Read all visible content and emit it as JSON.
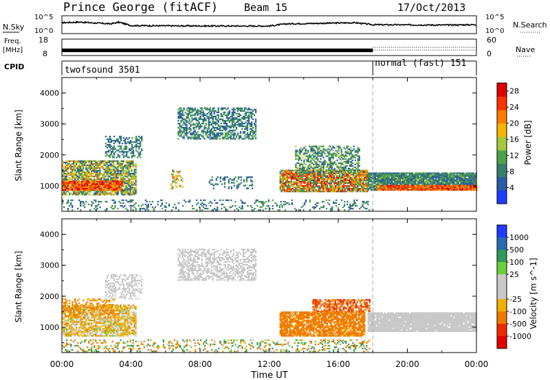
{
  "header": {
    "station": "Prince George (fitACF)",
    "beam": "Beam 15",
    "date": "17/Oct/2013"
  },
  "noise_panel": {
    "left_label": "N.Sky",
    "left_ticks": [
      "10^5",
      "10^0"
    ],
    "right_label": "N.Search",
    "right_ticks": [
      "10^5",
      "10^0"
    ]
  },
  "freq_panel": {
    "left_label_1": "Freq.",
    "left_label_2": "[MHz]",
    "left_ticks": [
      "18",
      "8"
    ],
    "right_label": "Nave",
    "right_ticks": [
      "60",
      "0"
    ]
  },
  "cpid": {
    "label": "CPID",
    "modes": [
      "twofsound 3501",
      "normal (fast) 151"
    ],
    "switch_time_hr": 18.0
  },
  "colors": {
    "power_scale": [
      "#1e3cff",
      "#2a5aa8",
      "#3a7e6a",
      "#4aa24a",
      "#a6c83a",
      "#f5b400",
      "#ff7b00",
      "#ff3000",
      "#e00000"
    ],
    "velocity_scale": [
      "#1e3cff",
      "#2a6ab4",
      "#2f9a5a",
      "#6ccf3a",
      "#c8c8c8",
      "#c8c8c8",
      "#f0b000",
      "#f07a00",
      "#ee2a00",
      "#e00000"
    ]
  },
  "chart_data": [
    {
      "type": "heatmap",
      "panel": "power",
      "ylabel": "Slant Range [km]",
      "yticks": [
        1000,
        2000,
        3000,
        4000
      ],
      "ylim": [
        180,
        4500
      ],
      "colorbar_label": "Power [dB]",
      "colorbar_ticks": [
        4,
        8,
        12,
        16,
        20,
        24,
        28
      ],
      "clim": [
        0,
        30
      ],
      "regions": [
        {
          "t0": 0.0,
          "t1": 4.3,
          "r0": 700,
          "r1": 1800,
          "dens": 0.75,
          "v0": 4,
          "v1": 22
        },
        {
          "t0": 0.0,
          "t1": 3.5,
          "r0": 850,
          "r1": 1150,
          "dens": 0.9,
          "v0": 18,
          "v1": 29
        },
        {
          "t0": 2.5,
          "t1": 4.6,
          "r0": 1900,
          "r1": 2600,
          "dens": 0.45,
          "v0": 4,
          "v1": 12
        },
        {
          "t0": 6.7,
          "t1": 11.2,
          "r0": 2500,
          "r1": 3500,
          "dens": 0.55,
          "v0": 4,
          "v1": 13
        },
        {
          "t0": 12.6,
          "t1": 17.7,
          "r0": 800,
          "r1": 1500,
          "dens": 0.85,
          "v0": 6,
          "v1": 29
        },
        {
          "t0": 13.5,
          "t1": 17.2,
          "r0": 1400,
          "r1": 2300,
          "dens": 0.5,
          "v0": 4,
          "v1": 16
        },
        {
          "t0": 17.7,
          "t1": 24.0,
          "r0": 850,
          "r1": 1400,
          "dens": 0.95,
          "v0": 4,
          "v1": 14
        },
        {
          "t0": 18.2,
          "t1": 24.0,
          "r0": 850,
          "r1": 1000,
          "dens": 0.9,
          "v0": 18,
          "v1": 29
        },
        {
          "t0": 0.0,
          "t1": 17.8,
          "r0": 200,
          "r1": 550,
          "dens": 0.2,
          "v0": 4,
          "v1": 12
        },
        {
          "t0": 6.3,
          "t1": 7.0,
          "r0": 900,
          "r1": 1500,
          "dens": 0.25,
          "v0": 8,
          "v1": 24
        },
        {
          "t0": 8.5,
          "t1": 11.0,
          "r0": 900,
          "r1": 1300,
          "dens": 0.25,
          "v0": 4,
          "v1": 12
        }
      ]
    },
    {
      "type": "heatmap",
      "panel": "velocity",
      "ylabel": "Slant Range [km]",
      "yticks": [
        1000,
        2000,
        3000,
        4000
      ],
      "ylim": [
        180,
        4500
      ],
      "colorbar_label": "Velocity [m s^-1]",
      "colorbar_ticks": [
        "1000",
        "500",
        "100",
        "25",
        "-25",
        "-100",
        "-500",
        "-1000"
      ],
      "regions": [
        {
          "t0": 0.0,
          "t1": 4.3,
          "r0": 700,
          "r1": 1700,
          "dens": 0.75,
          "v0": -120,
          "v1": 40
        },
        {
          "t0": 0.0,
          "t1": 3.0,
          "r0": 1300,
          "r1": 1900,
          "dens": 0.35,
          "v0": -200,
          "v1": -60
        },
        {
          "t0": 2.5,
          "t1": 4.6,
          "r0": 1900,
          "r1": 2700,
          "dens": 0.4,
          "v0": -20,
          "v1": 20
        },
        {
          "t0": 6.7,
          "t1": 11.2,
          "r0": 2500,
          "r1": 3500,
          "dens": 0.5,
          "v0": -20,
          "v1": 20
        },
        {
          "t0": 12.6,
          "t1": 17.5,
          "r0": 700,
          "r1": 1500,
          "dens": 0.8,
          "v0": -300,
          "v1": -70
        },
        {
          "t0": 14.5,
          "t1": 17.8,
          "r0": 1500,
          "r1": 1900,
          "dens": 0.6,
          "v0": -700,
          "v1": -200
        },
        {
          "t0": 17.7,
          "t1": 24.0,
          "r0": 850,
          "r1": 1450,
          "dens": 0.95,
          "v0": -20,
          "v1": 20
        },
        {
          "t0": 0.0,
          "t1": 17.8,
          "r0": 200,
          "r1": 600,
          "dens": 0.25,
          "v0": -300,
          "v1": 300
        }
      ]
    },
    {
      "type": "line",
      "panel": "noise",
      "x_range": [
        0,
        24
      ],
      "levels": [
        [
          0,
          0.62
        ],
        [
          1,
          0.66
        ],
        [
          2.8,
          0.55
        ],
        [
          3.3,
          0.65
        ],
        [
          4,
          0.45
        ],
        [
          6,
          0.43
        ],
        [
          10,
          0.42
        ],
        [
          12,
          0.42
        ],
        [
          13,
          0.55
        ],
        [
          17,
          0.62
        ],
        [
          18,
          0.5
        ],
        [
          22,
          0.48
        ],
        [
          24,
          0.5
        ]
      ]
    },
    {
      "type": "line",
      "panel": "frequency",
      "x_range": [
        0,
        24
      ],
      "freq_band_mhz": [
        9.8,
        12.2
      ],
      "freq_band_end_hr": 18.0,
      "nave_after_switch": 30
    }
  ],
  "xaxis": {
    "ticks": [
      "00:00",
      "04:00",
      "08:00",
      "12:00",
      "16:00",
      "20:00",
      "00:00"
    ],
    "label": "Time UT"
  }
}
